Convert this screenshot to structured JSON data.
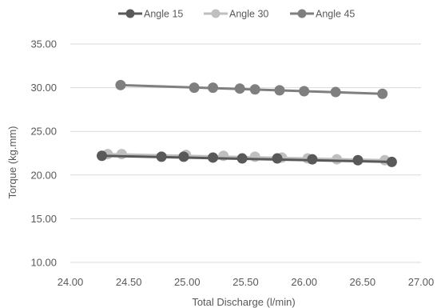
{
  "chart_data": {
    "type": "line",
    "title": "",
    "xlabel": "Total Discharge (l/min)",
    "ylabel": "Torque  (kg.mm)",
    "xlim": [
      24.0,
      27.0
    ],
    "ylim": [
      10.0,
      35.0
    ],
    "x_ticks": [
      "24.00",
      "24.50",
      "25.00",
      "25.50",
      "26.00",
      "26.50",
      "27.00"
    ],
    "y_ticks": [
      "10.00",
      "15.00",
      "20.00",
      "25.00",
      "30.00",
      "35.00"
    ],
    "grid": "horizontal",
    "legend_position": "top",
    "series": [
      {
        "name": "Angle 15",
        "color": "#595959",
        "points": [
          {
            "x": 24.27,
            "y": 22.2
          },
          {
            "x": 24.78,
            "y": 22.1
          },
          {
            "x": 24.97,
            "y": 22.1
          },
          {
            "x": 25.22,
            "y": 22.0
          },
          {
            "x": 25.47,
            "y": 21.9
          },
          {
            "x": 25.77,
            "y": 21.9
          },
          {
            "x": 26.07,
            "y": 21.8
          },
          {
            "x": 26.46,
            "y": 21.7
          },
          {
            "x": 26.75,
            "y": 21.5
          }
        ]
      },
      {
        "name": "Angle 30",
        "color": "#bfbfbf",
        "points": [
          {
            "x": 24.32,
            "y": 22.4
          },
          {
            "x": 24.44,
            "y": 22.4
          },
          {
            "x": 24.99,
            "y": 22.3
          },
          {
            "x": 25.31,
            "y": 22.2
          },
          {
            "x": 25.58,
            "y": 22.1
          },
          {
            "x": 25.81,
            "y": 22.0
          },
          {
            "x": 26.03,
            "y": 21.9
          },
          {
            "x": 26.28,
            "y": 21.8
          },
          {
            "x": 26.69,
            "y": 21.7
          }
        ]
      },
      {
        "name": "Angle 45",
        "color": "#7f7f7f",
        "points": [
          {
            "x": 24.43,
            "y": 30.3
          },
          {
            "x": 25.06,
            "y": 30.0
          },
          {
            "x": 25.22,
            "y": 30.0
          },
          {
            "x": 25.45,
            "y": 29.9
          },
          {
            "x": 25.58,
            "y": 29.8
          },
          {
            "x": 25.79,
            "y": 29.7
          },
          {
            "x": 26.0,
            "y": 29.6
          },
          {
            "x": 26.27,
            "y": 29.5
          },
          {
            "x": 26.67,
            "y": 29.3
          }
        ]
      }
    ]
  }
}
